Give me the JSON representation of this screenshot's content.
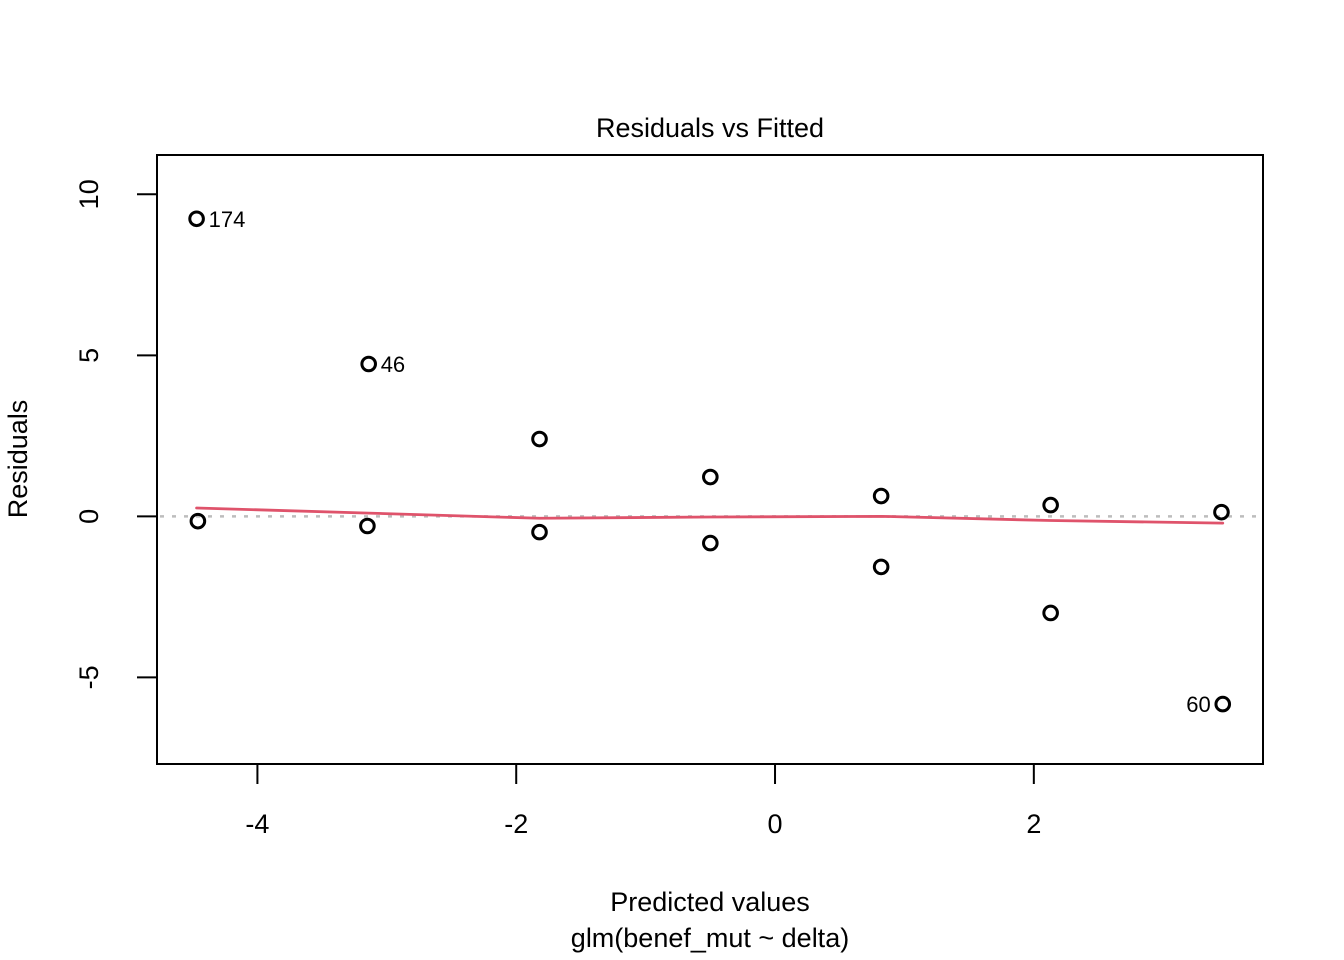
{
  "figure": {
    "title": "Residuals vs Fitted",
    "xlabel": "Predicted values",
    "xlabel_sub": "glm(benef_mut ~ delta)",
    "ylabel": "Residuals"
  },
  "colors": {
    "smoother": "#DF536B",
    "zero_line": "#bdbdbd",
    "points": "#000000",
    "frame": "#000000"
  },
  "chart_data": {
    "type": "scatter",
    "title": "Residuals vs Fitted",
    "xlabel": "Predicted values",
    "xlabel_sub": "glm(benef_mut ~ delta)",
    "ylabel": "Residuals",
    "xlim": [
      -4.776,
      3.771
    ],
    "ylim": [
      -7.69,
      11.22
    ],
    "x_ticks": [
      -4,
      -2,
      0,
      2
    ],
    "y_ticks": [
      -5,
      0,
      5,
      10
    ],
    "grid": false,
    "legend": null,
    "marker": "open-circle",
    "points": [
      {
        "x": -4.47,
        "y": 9.24,
        "label": "174",
        "label_side": "right"
      },
      {
        "x": -4.46,
        "y": -0.15,
        "label": null,
        "label_side": null
      },
      {
        "x": -3.14,
        "y": 4.73,
        "label": "46",
        "label_side": "right"
      },
      {
        "x": -3.15,
        "y": -0.3,
        "label": null,
        "label_side": null
      },
      {
        "x": -1.82,
        "y": 2.4,
        "label": null,
        "label_side": null
      },
      {
        "x": -1.82,
        "y": -0.49,
        "label": null,
        "label_side": null
      },
      {
        "x": -0.5,
        "y": 1.22,
        "label": null,
        "label_side": null
      },
      {
        "x": -0.5,
        "y": -0.83,
        "label": null,
        "label_side": null
      },
      {
        "x": 0.82,
        "y": 0.63,
        "label": null,
        "label_side": null
      },
      {
        "x": 0.82,
        "y": -1.57,
        "label": null,
        "label_side": null
      },
      {
        "x": 2.13,
        "y": 0.35,
        "label": null,
        "label_side": null
      },
      {
        "x": 2.13,
        "y": -3.0,
        "label": null,
        "label_side": null
      },
      {
        "x": 3.45,
        "y": 0.13,
        "label": null,
        "label_side": null
      },
      {
        "x": 3.46,
        "y": -5.83,
        "label": "60",
        "label_side": "left"
      }
    ],
    "zero_line": {
      "y": 0,
      "style": "dotted"
    },
    "smoother": {
      "x": [
        -4.47,
        -3.14,
        -1.82,
        -0.5,
        0.82,
        2.13,
        3.46
      ],
      "y": [
        0.26,
        0.1,
        -0.06,
        -0.02,
        0.0,
        -0.13,
        -0.21
      ]
    }
  }
}
